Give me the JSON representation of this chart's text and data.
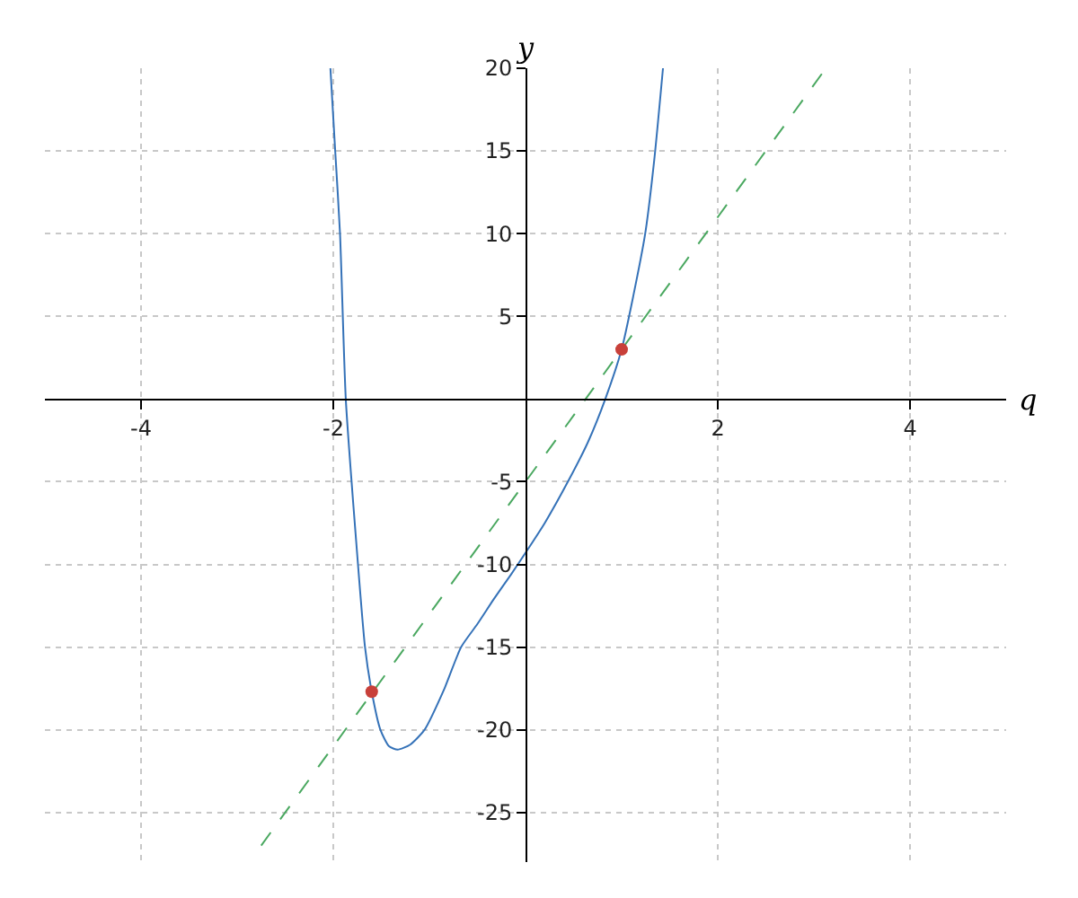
{
  "chart_data": {
    "type": "line",
    "xlabel": "q",
    "ylabel": "y",
    "xlim": [
      -5,
      5
    ],
    "ylim": [
      -28,
      20
    ],
    "xticks": [
      -4,
      -2,
      2,
      4
    ],
    "yticks": [
      -25,
      -20,
      -15,
      -10,
      -5,
      5,
      10,
      15,
      20
    ],
    "grid": true,
    "legend": false,
    "series": [
      {
        "color": "#3572b8",
        "line_style": "solid",
        "marker": "none",
        "x": [
          -2.03,
          -1.98,
          -1.93,
          -1.87,
          -1.77,
          -1.67,
          -1.6,
          -1.51,
          -1.42,
          -1.33,
          -1.2,
          -1.05,
          -0.85,
          -0.67,
          -0.5,
          -0.33,
          -0.15,
          0,
          0.2,
          0.45,
          0.65,
          0.83,
          1,
          1.12,
          1.245,
          1.34,
          1.43
        ],
        "values": [
          20,
          15,
          10,
          0,
          -8,
          -15,
          -17.7,
          -20,
          -21,
          -21.2,
          -20.9,
          -20,
          -17.6,
          -15,
          -13.6,
          -12.1,
          -10.6,
          -9.3,
          -7.5,
          -4.9,
          -2.6,
          0,
          3,
          6.2,
          10,
          14.5,
          20
        ]
      },
      {
        "type": "line",
        "color": "#4aa860",
        "line_style": "dashed",
        "marker": "none",
        "x": [
          -2.75,
          3.125
        ],
        "values": [
          -27,
          20
        ]
      },
      {
        "type": "scatter",
        "color": "#c8403a",
        "marker": "circle",
        "x": [
          -1.6,
          1
        ],
        "values": [
          -17.7,
          3
        ]
      }
    ]
  }
}
